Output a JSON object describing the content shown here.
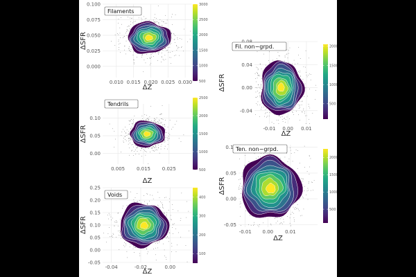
{
  "chart_data": [
    {
      "type": "scatter",
      "title": "Filaments",
      "xlabel": "ΔZ",
      "ylabel": "ΔSFR",
      "xlim": [
        0.006,
        0.032
      ],
      "ylim": [
        -0.018,
        0.1
      ],
      "xticks": [
        "0.010",
        "0.015",
        "0.020",
        "0.025",
        "0.030"
      ],
      "xtick_values": [
        0.01,
        0.015,
        0.02,
        0.025,
        0.03
      ],
      "yticks": [
        "0.000",
        "0.025",
        "0.050",
        "0.075",
        "0.100"
      ],
      "ytick_values": [
        0.0,
        0.025,
        0.05,
        0.075,
        0.1
      ],
      "center": [
        0.0195,
        0.046
      ],
      "spread": [
        0.0032,
        0.013
      ],
      "density_levels": 8,
      "colorbar": {
        "range": [
          500,
          3000
        ],
        "ticks": [
          "3000",
          "2500",
          "2000",
          "1500",
          "1000",
          "500"
        ],
        "tick_values": [
          3000,
          2500,
          2000,
          1500,
          1000,
          500
        ]
      }
    },
    {
      "type": "scatter",
      "title": "Tendrils",
      "xlabel": "ΔZ",
      "ylabel": "ΔSFR",
      "xlim": [
        -0.001,
        0.034
      ],
      "ylim": [
        -0.03,
        0.14
      ],
      "xticks": [
        "0.005",
        "0.015",
        "0.025"
      ],
      "xtick_values": [
        0.005,
        0.015,
        0.025
      ],
      "yticks": [
        "0.00",
        "0.05",
        "0.10"
      ],
      "ytick_values": [
        0.0,
        0.05,
        0.1
      ],
      "center": [
        0.0165,
        0.055
      ],
      "spread": [
        0.0035,
        0.019
      ],
      "density_levels": 7,
      "colorbar": {
        "range": [
          500,
          2500
        ],
        "ticks": [
          "2500",
          "2000",
          "1500",
          "1000",
          "500"
        ],
        "tick_values": [
          2500,
          2000,
          1500,
          1000,
          500
        ]
      }
    },
    {
      "type": "scatter",
      "title": "Voids",
      "xlabel": "ΔZ",
      "ylabel": "ΔSFR",
      "xlim": [
        -0.046,
        0.015
      ],
      "ylim": [
        -0.05,
        0.25
      ],
      "xticks": [
        "-0.04",
        "-0.02",
        "0.00"
      ],
      "xtick_values": [
        -0.04,
        -0.02,
        0.0
      ],
      "yticks": [
        "-0.05",
        "0.00",
        "0.05",
        "0.10",
        "0.15",
        "0.20",
        "0.25"
      ],
      "ytick_values": [
        -0.05,
        0.0,
        0.05,
        0.1,
        0.15,
        0.2,
        0.25
      ],
      "center": [
        -0.018,
        0.1
      ],
      "spread": [
        0.0085,
        0.045
      ],
      "density_levels": 9,
      "colorbar": {
        "range": [
          50,
          450
        ],
        "ticks": [
          "400",
          "300",
          "200",
          "100"
        ],
        "tick_values": [
          400,
          300,
          200,
          100
        ]
      }
    },
    {
      "type": "scatter",
      "title": "Fil. non−grpd.",
      "xlabel": "ΔZ",
      "ylabel": "ΔSFR",
      "xlim": [
        -0.018,
        0.016
      ],
      "ylim": [
        -0.063,
        0.08
      ],
      "xticks": [
        "-0.01",
        "0.00",
        "0.01"
      ],
      "xtick_values": [
        -0.01,
        0.0,
        0.01
      ],
      "yticks": [
        "-0.04",
        "0.00",
        "0.04",
        "0.08"
      ],
      "ytick_values": [
        -0.04,
        0.0,
        0.04,
        0.08
      ],
      "center": [
        -0.0035,
        0.0
      ],
      "spread": [
        0.0058,
        0.024
      ],
      "density_levels": 9,
      "colorbar": {
        "range": [
          100,
          2050
        ],
        "ticks": [
          "2000",
          "1500",
          "1000",
          "500"
        ],
        "tick_values": [
          2000,
          1500,
          1000,
          500
        ]
      }
    },
    {
      "type": "scatter",
      "title": "Ten. non−grpd.",
      "xlabel": "ΔZ",
      "ylabel": "ΔSFR",
      "xlim": [
        -0.013,
        0.022
      ],
      "ylim": [
        -0.055,
        0.105
      ],
      "xticks": [
        "-0.01",
        "0.00",
        "0.01"
      ],
      "xtick_values": [
        -0.01,
        0.0,
        0.01
      ],
      "yticks": [
        "-0.05",
        "0.00",
        "0.05",
        "0.10"
      ],
      "ytick_values": [
        -0.05,
        0.0,
        0.05,
        0.1
      ],
      "center": [
        0.001,
        0.022
      ],
      "spread": [
        0.0068,
        0.031
      ],
      "density_levels": 9,
      "colorbar": {
        "range": [
          100,
          2250
        ],
        "ticks": [
          "2000",
          "1500",
          "1000",
          "500"
        ],
        "tick_values": [
          2000,
          1500,
          1000,
          500
        ]
      }
    }
  ],
  "colors": {
    "viridis": [
      "#440154",
      "#482475",
      "#414487",
      "#355f8d",
      "#2a788e",
      "#21918c",
      "#22a884",
      "#44bf70",
      "#7ad151",
      "#bddf26",
      "#fde725"
    ],
    "contour_line": "#ffffff",
    "grid": "#e6e6e6",
    "scatter": "#333333"
  }
}
